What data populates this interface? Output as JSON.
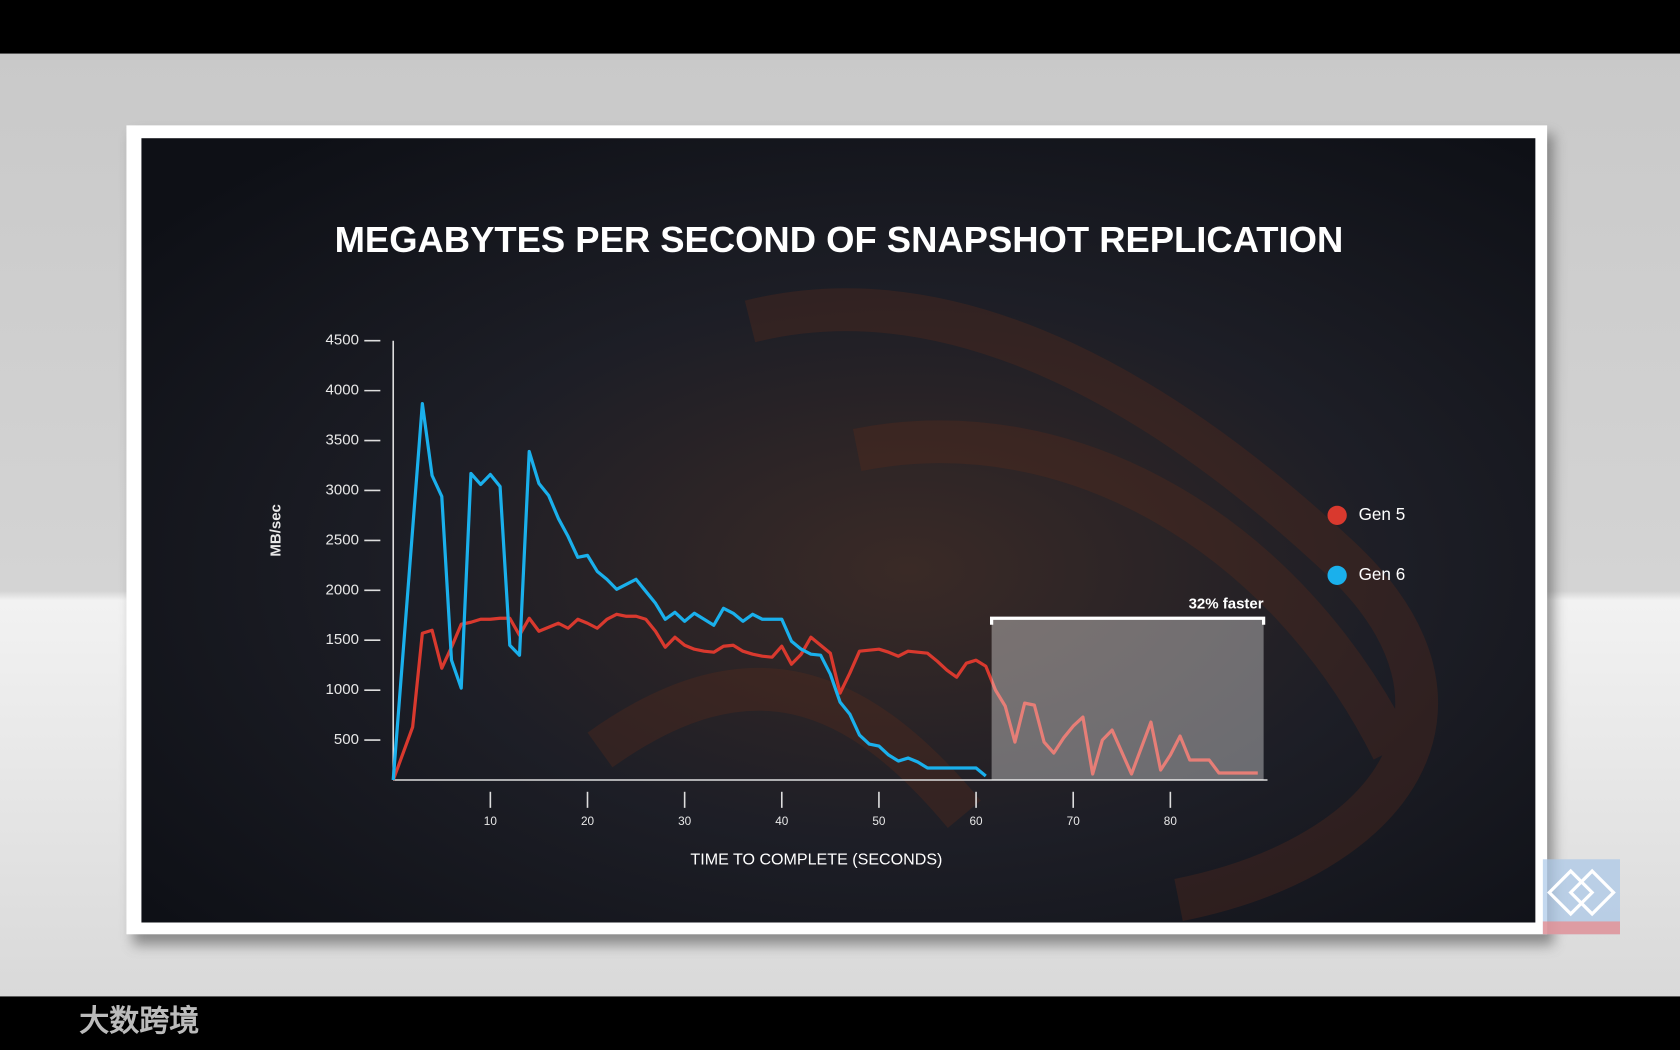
{
  "chart_data": {
    "type": "line",
    "title": "MEGABYTES PER SECOND OF SNAPSHOT REPLICATION",
    "ylabel": "MB/sec",
    "xlabel": "TIME TO COMPLETE (SECONDS)",
    "xlim": [
      0,
      90
    ],
    "xticks": [
      10,
      20,
      30,
      40,
      50,
      60,
      70,
      80
    ],
    "ylim": [
      100,
      4500
    ],
    "yticks": [
      500,
      1000,
      1500,
      2000,
      2500,
      3000,
      3500,
      4000,
      4500
    ],
    "legend": "right",
    "series": [
      {
        "name": "Gen 5",
        "color": "#d9392e",
        "x": [
          0,
          2,
          3,
          4,
          5,
          6,
          7,
          8,
          9,
          10,
          11,
          12,
          13,
          14,
          15,
          16,
          17,
          18,
          19,
          20,
          21,
          22,
          23,
          24,
          25,
          26,
          27,
          28,
          29,
          30,
          31,
          32,
          33,
          34,
          35,
          36,
          37,
          38,
          39,
          40,
          41,
          42,
          43,
          44,
          45,
          46,
          47,
          48,
          49,
          50,
          51,
          52,
          53,
          54,
          55,
          56,
          57,
          58,
          59,
          60,
          61,
          62,
          63,
          64,
          65,
          66,
          67,
          68,
          69,
          70,
          71,
          72,
          73,
          74,
          75,
          76,
          77,
          78,
          79,
          80,
          81,
          82,
          83,
          84,
          85,
          86,
          87,
          88,
          89
        ],
        "values": [
          100,
          630,
          1570,
          1600,
          1220,
          1430,
          1660,
          1680,
          1710,
          1710,
          1720,
          1720,
          1550,
          1720,
          1590,
          1630,
          1670,
          1620,
          1710,
          1670,
          1620,
          1710,
          1760,
          1740,
          1740,
          1710,
          1590,
          1430,
          1530,
          1450,
          1410,
          1390,
          1380,
          1440,
          1450,
          1390,
          1360,
          1340,
          1330,
          1440,
          1260,
          1360,
          1530,
          1450,
          1370,
          970,
          1170,
          1390,
          1400,
          1410,
          1380,
          1340,
          1390,
          1380,
          1370,
          1290,
          1200,
          1130,
          1270,
          1300,
          1240,
          1000,
          840,
          480,
          870,
          850,
          480,
          370,
          520,
          640,
          730,
          160,
          500,
          600,
          380,
          160,
          420,
          680,
          200,
          350,
          540,
          300,
          300,
          300,
          170,
          170,
          170,
          170,
          170
        ]
      },
      {
        "name": "Gen 6",
        "color": "#1ab0ec",
        "x": [
          0,
          3,
          4,
          5,
          6,
          7,
          8,
          9,
          10,
          11,
          12,
          13,
          14,
          15,
          16,
          17,
          18,
          19,
          20,
          21,
          22,
          23,
          24,
          25,
          26,
          27,
          28,
          29,
          30,
          31,
          32,
          33,
          34,
          35,
          36,
          37,
          38,
          39,
          40,
          41,
          42,
          43,
          44,
          45,
          46,
          47,
          48,
          49,
          50,
          51,
          52,
          53,
          54,
          55,
          56,
          57,
          58,
          59,
          60,
          61
        ],
        "values": [
          100,
          3870,
          3150,
          2940,
          1300,
          1020,
          3170,
          3060,
          3160,
          3040,
          1450,
          1350,
          3390,
          3070,
          2950,
          2720,
          2540,
          2330,
          2350,
          2190,
          2110,
          2010,
          2060,
          2110,
          1990,
          1870,
          1710,
          1780,
          1690,
          1770,
          1710,
          1650,
          1820,
          1770,
          1690,
          1760,
          1710,
          1710,
          1710,
          1490,
          1410,
          1360,
          1350,
          1160,
          880,
          760,
          550,
          460,
          440,
          350,
          290,
          320,
          280,
          220,
          220,
          220,
          220,
          220,
          220,
          140
        ]
      }
    ],
    "annotation": {
      "text": "32% faster",
      "x": [
        61.6,
        89.6
      ],
      "y": 1720
    }
  },
  "watermark": "大数跨境"
}
